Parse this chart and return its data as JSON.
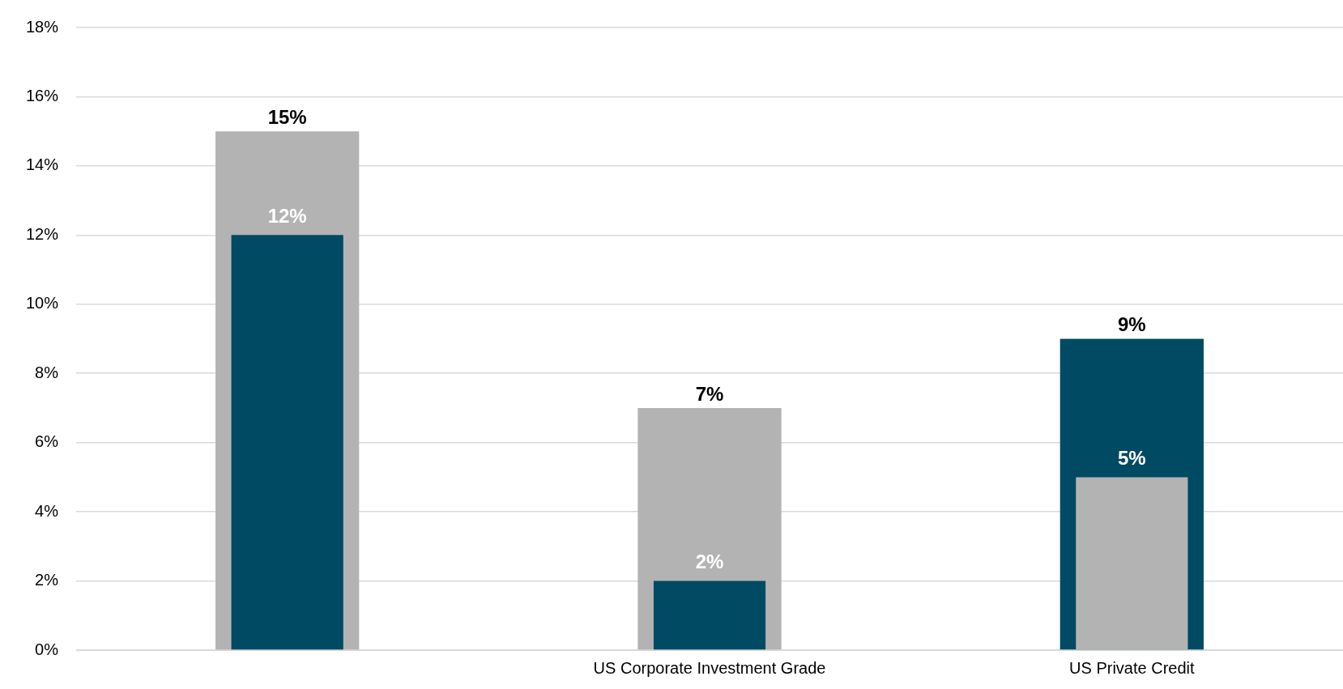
{
  "chart_data": {
    "type": "bar",
    "categories": [
      null,
      "US Corporate Investment Grade",
      "US Private Credit"
    ],
    "series": [
      {
        "colors": [
          "#b3b3b3",
          "#b3b3b3",
          "#004a63"
        ],
        "values": [
          15,
          7,
          9
        ],
        "value_labels": [
          "15%",
          "7%",
          "9%"
        ]
      },
      {
        "colors": [
          "#004a63",
          "#004a63",
          "#b3b3b3"
        ],
        "values": [
          12,
          2,
          5
        ],
        "value_labels": [
          "12%",
          "2%",
          "5%"
        ]
      }
    ],
    "ylim": [
      0,
      18
    ],
    "yticks": [
      {
        "value": 0,
        "label": "0%"
      },
      {
        "value": 2,
        "label": "2%"
      },
      {
        "value": 4,
        "label": "4%"
      },
      {
        "value": 6,
        "label": "6%"
      },
      {
        "value": 8,
        "label": "8%"
      },
      {
        "value": 10,
        "label": "10%"
      },
      {
        "value": 12,
        "label": "12%"
      },
      {
        "value": 14,
        "label": "14%"
      },
      {
        "value": 16,
        "label": "16%"
      },
      {
        "value": 18,
        "label": "18%"
      }
    ],
    "grid": "y",
    "legend": false
  }
}
